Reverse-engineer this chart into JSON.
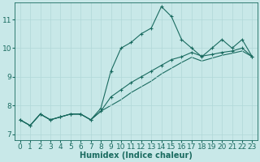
{
  "xlabel": "Humidex (Indice chaleur)",
  "background_color": "#c8e8e8",
  "grid_color": "#b0d8d8",
  "line_color": "#1a6b60",
  "hours": [
    0,
    1,
    2,
    3,
    4,
    5,
    6,
    7,
    8,
    9,
    10,
    11,
    12,
    13,
    14,
    15,
    16,
    17,
    18,
    19,
    20,
    21,
    22,
    23
  ],
  "series1": [
    7.5,
    7.3,
    7.7,
    7.5,
    7.6,
    7.7,
    7.7,
    7.5,
    7.9,
    9.2,
    10.0,
    10.2,
    10.5,
    10.7,
    11.45,
    11.1,
    10.3,
    10.0,
    9.7,
    10.0,
    10.3,
    10.0,
    10.3,
    9.7
  ],
  "series2": [
    7.5,
    7.3,
    7.7,
    7.5,
    7.6,
    7.7,
    7.7,
    7.5,
    7.8,
    8.3,
    8.55,
    8.8,
    9.0,
    9.2,
    9.4,
    9.6,
    9.7,
    9.85,
    9.72,
    9.78,
    9.85,
    9.9,
    10.0,
    9.7
  ],
  "series3": [
    7.5,
    7.3,
    7.7,
    7.5,
    7.6,
    7.7,
    7.7,
    7.5,
    7.8,
    8.0,
    8.2,
    8.45,
    8.65,
    8.85,
    9.1,
    9.3,
    9.5,
    9.68,
    9.55,
    9.65,
    9.75,
    9.82,
    9.9,
    9.7
  ],
  "xlim": [
    -0.5,
    23.5
  ],
  "ylim": [
    6.8,
    11.6
  ],
  "xticks": [
    0,
    1,
    2,
    3,
    4,
    5,
    6,
    7,
    8,
    9,
    10,
    11,
    12,
    13,
    14,
    15,
    16,
    17,
    18,
    19,
    20,
    21,
    22,
    23
  ],
  "yticks": [
    7,
    8,
    9,
    10,
    11
  ],
  "fontsize_label": 7,
  "fontsize_tick": 6.5
}
